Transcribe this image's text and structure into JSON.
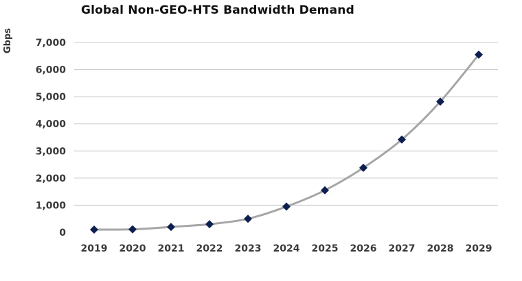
{
  "chart_data": {
    "type": "line",
    "title": "Global Non-GEO-HTS Bandwidth Demand",
    "xlabel": "",
    "ylabel": "Gbps",
    "categories": [
      "2019",
      "2020",
      "2021",
      "2022",
      "2023",
      "2024",
      "2025",
      "2026",
      "2027",
      "2028",
      "2029"
    ],
    "series": [
      {
        "values": [
          100,
          110,
          200,
          300,
          500,
          950,
          1550,
          2380,
          3420,
          4820,
          6550
        ]
      }
    ],
    "ylim": [
      0,
      7000
    ],
    "yticks": [
      0,
      1000,
      2000,
      3000,
      4000,
      5000,
      6000,
      7000
    ],
    "ytick_labels": [
      "0",
      "1,000",
      "2,000",
      "3,000",
      "4,000",
      "5,000",
      "6,000",
      "7,000"
    ],
    "grid": true,
    "legend": "none",
    "colors": {
      "line": "#a6a6a6",
      "marker": "#0d1f4f",
      "grid": "#c8c8c8"
    }
  }
}
